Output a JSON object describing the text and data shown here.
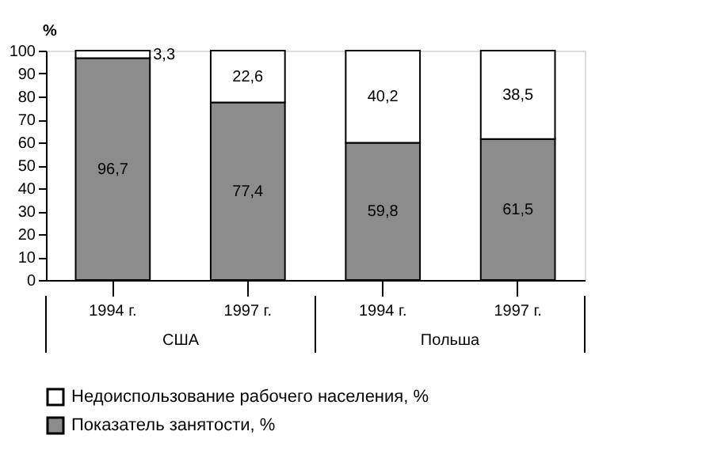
{
  "chart_data": {
    "type": "bar",
    "stacked": true,
    "categories": [
      "1994 г.",
      "1997 г.",
      "1994 г.",
      "1997 г."
    ],
    "series": [
      {
        "name": "Показатель занятости, %",
        "color": "#8c8c8c",
        "values": [
          96.7,
          77.4,
          59.8,
          61.5
        ],
        "value_labels": [
          "96,7",
          "77,4",
          "59,8",
          "61,5"
        ]
      },
      {
        "name": "Недоиспользование рабочего населения, %",
        "color": "#ffffff",
        "values": [
          3.3,
          22.6,
          40.2,
          38.5
        ],
        "value_labels": [
          "3,3",
          "22,6",
          "40,2",
          "38,5"
        ]
      }
    ],
    "ylabel": "%",
    "ylim": [
      0,
      100
    ],
    "yticks": [
      0,
      10,
      20,
      30,
      40,
      50,
      60,
      70,
      80,
      90,
      100
    ],
    "annotations": [
      "США",
      "Польша"
    ],
    "data_labels": true,
    "grid": false,
    "legend": "bottom"
  }
}
